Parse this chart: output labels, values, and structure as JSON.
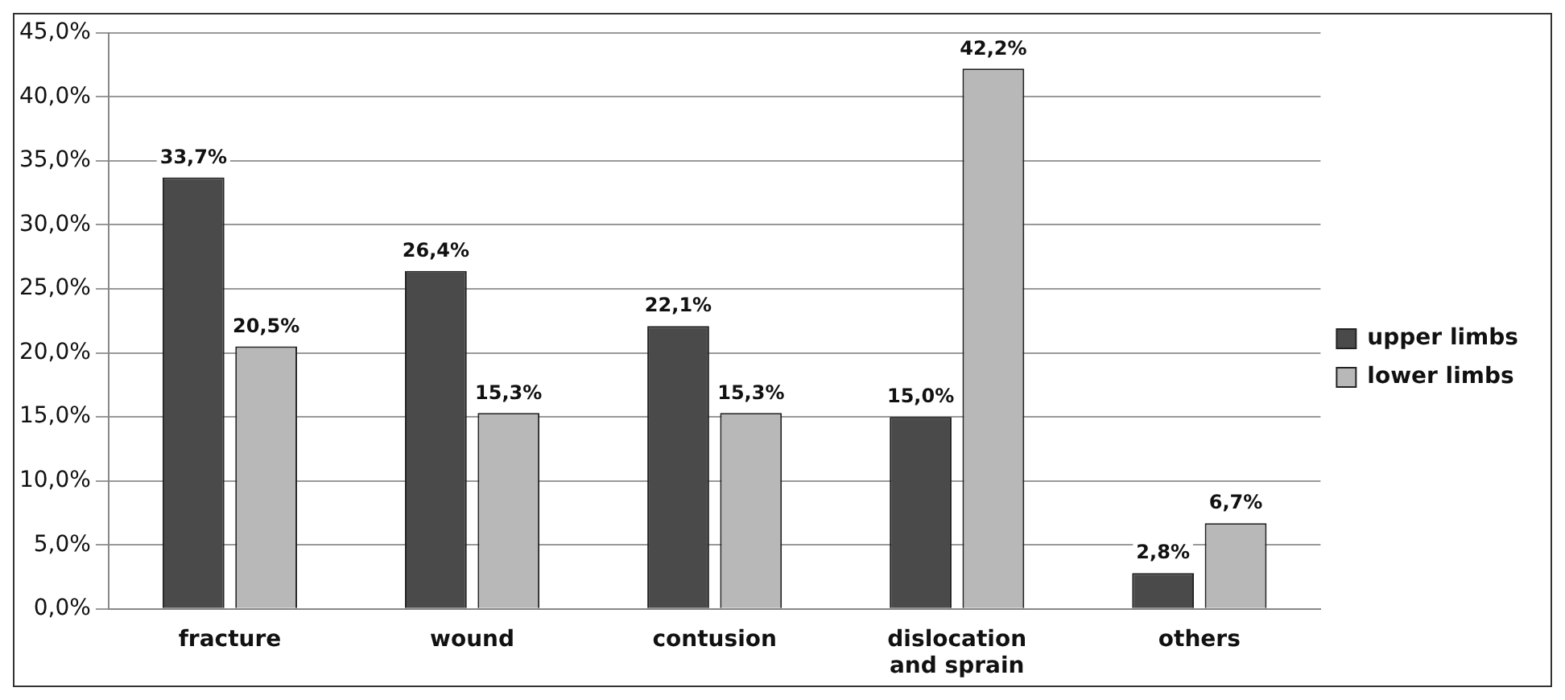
{
  "chart_data": {
    "type": "bar",
    "categories": [
      "fracture",
      "wound",
      "contusion",
      "dislocation and sprain",
      "others"
    ],
    "series": [
      {
        "name": "upper limbs",
        "color": "#4a4a4a",
        "values": [
          33.7,
          26.4,
          22.1,
          15.0,
          2.8
        ],
        "value_labels": [
          "33,7%",
          "26,4%",
          "22,1%",
          "15,0%",
          "2,8%"
        ]
      },
      {
        "name": "lower limbs",
        "color": "#b8b8b8",
        "values": [
          20.5,
          15.3,
          15.3,
          42.2,
          6.7
        ],
        "value_labels": [
          "20,5%",
          "15,3%",
          "15,3%",
          "42,2%",
          "6,7%"
        ]
      }
    ],
    "ylim": [
      0,
      45
    ],
    "yticks": [
      {
        "value": 0,
        "label": "0,0%"
      },
      {
        "value": 5,
        "label": "5,0%"
      },
      {
        "value": 10,
        "label": "10,0%"
      },
      {
        "value": 15,
        "label": "15,0%"
      },
      {
        "value": 20,
        "label": "20,0%"
      },
      {
        "value": 25,
        "label": "25,0%"
      },
      {
        "value": 30,
        "label": "30,0%"
      },
      {
        "value": 35,
        "label": "35,0%"
      },
      {
        "value": 40,
        "label": "40,0%"
      },
      {
        "value": 45,
        "label": "45,0%"
      }
    ],
    "grid": "y",
    "legend": "right"
  }
}
